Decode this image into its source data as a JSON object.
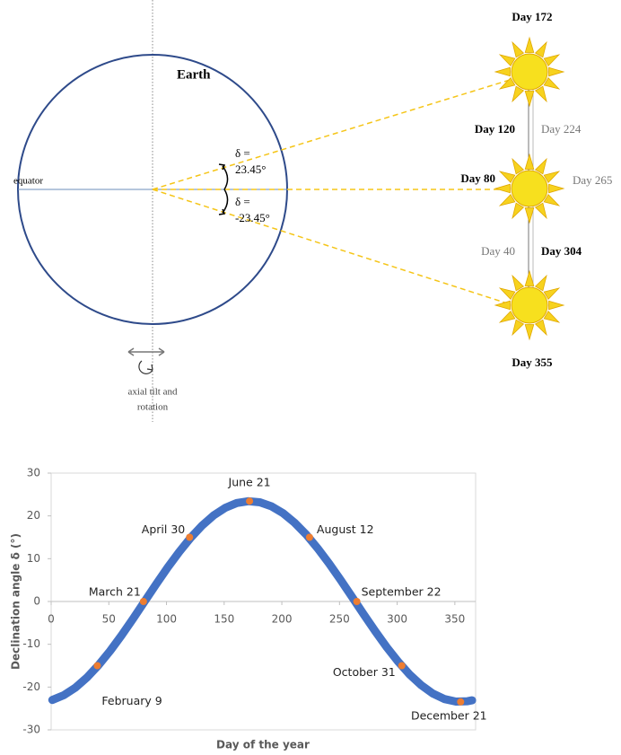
{
  "diagram": {
    "earth": "Earth",
    "equator": "equator",
    "delta_north": [
      "δ =",
      "23.45°"
    ],
    "delta_south": [
      "δ =",
      "-23.45°"
    ],
    "days": [
      "Day 172",
      "Day 120",
      "Day 224",
      "Day 80",
      "Day 265",
      "Day 40",
      "Day 304",
      "Day 355"
    ],
    "axial": [
      "axial tilt and",
      "rotation"
    ]
  },
  "chart_data": {
    "type": "line",
    "xlabel": "Day of the year",
    "ylabel": "Declination angle δ (°)",
    "color": "#4472c4",
    "x": [
      1,
      11,
      21,
      31,
      41,
      51,
      61,
      71,
      81,
      91,
      101,
      111,
      121,
      131,
      141,
      151,
      161,
      171,
      181,
      191,
      201,
      211,
      221,
      231,
      241,
      251,
      261,
      271,
      281,
      291,
      301,
      311,
      321,
      331,
      341,
      351,
      361,
      365
    ],
    "values": [
      -23.01,
      -21.9,
      -20.14,
      -17.78,
      -14.9,
      -11.58,
      -7.92,
      -4.02,
      0,
      4.02,
      7.92,
      11.58,
      14.9,
      17.78,
      20.14,
      21.9,
      23.01,
      23.44,
      23.18,
      22.24,
      20.64,
      18.42,
      15.67,
      12.44,
      8.86,
      5.01,
      1.01,
      -3.02,
      -6.96,
      -10.69,
      -14.11,
      -17.11,
      -19.6,
      -21.52,
      -22.8,
      -23.4,
      -23.31,
      -23.09
    ],
    "points": {
      "color": "#ed7d31",
      "x": [
        40,
        80,
        120,
        172,
        224,
        265,
        304,
        355
      ],
      "values": [
        -15,
        0,
        15,
        23.45,
        15,
        0,
        -15,
        -23.45
      ],
      "labels": [
        "February 9",
        "March 21",
        "April 30",
        "June 21",
        "August 12",
        "September 22",
        "October 31",
        "December 21"
      ]
    },
    "xlim": [
      0,
      368
    ],
    "ylim": [
      -30,
      30
    ],
    "xticks": [
      0,
      50,
      100,
      150,
      200,
      250,
      300,
      350
    ],
    "yticks": [
      -30,
      -20,
      -10,
      0,
      10,
      20,
      30
    ]
  }
}
